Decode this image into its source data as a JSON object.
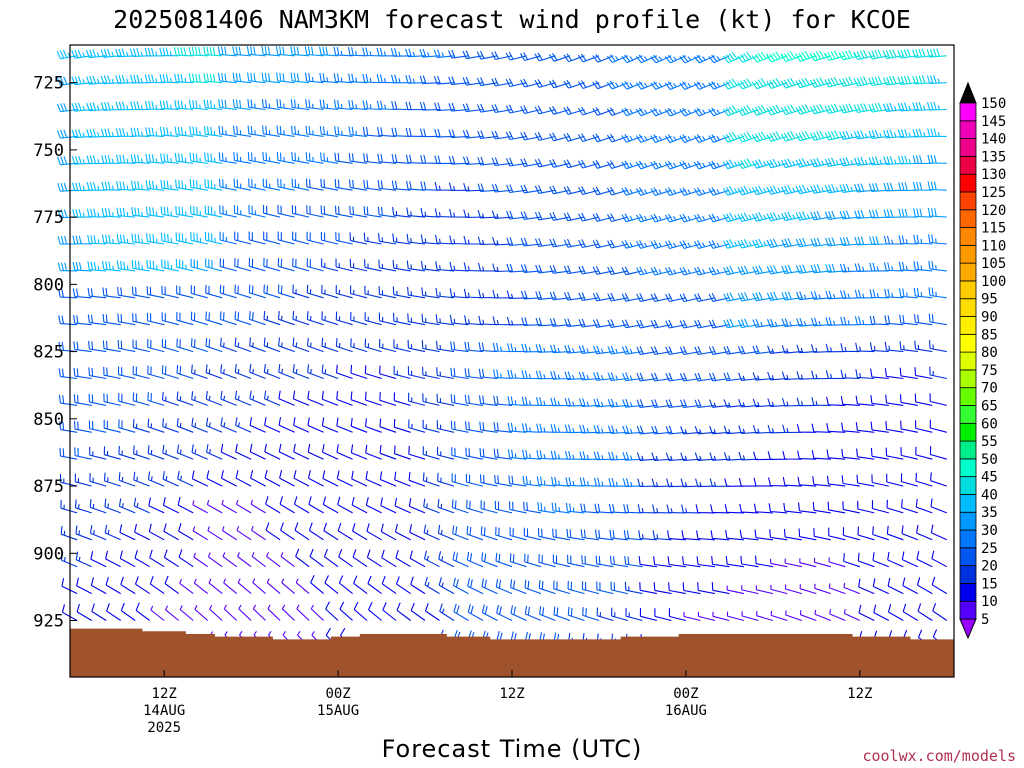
{
  "title": "2025081406 NAM3KM forecast wind profile (kt) for KCOE",
  "credit": "coolwx.com/models",
  "chart_data": {
    "type": "wind-barb time-height",
    "xlabel": "Forecast Time (UTC)",
    "ylabel": "",
    "y_axis": {
      "label_values": [
        725,
        750,
        775,
        800,
        825,
        850,
        875,
        900,
        925
      ],
      "range": [
        711,
        946
      ],
      "inverted": true
    },
    "x_axis": {
      "range_hours_from_init": [
        -0.5,
        60.5
      ],
      "ticks": [
        {
          "hour": 6,
          "lines": [
            "12Z",
            "14AUG",
            "2025"
          ]
        },
        {
          "hour": 18,
          "lines": [
            "00Z",
            "15AUG"
          ]
        },
        {
          "hour": 30,
          "lines": [
            "12Z"
          ]
        },
        {
          "hour": 42,
          "lines": [
            "00Z",
            "16AUG"
          ]
        },
        {
          "hour": 54,
          "lines": [
            "12Z"
          ]
        }
      ]
    },
    "barb_levels_hpa": [
      715,
      725,
      735,
      745,
      755,
      765,
      775,
      785,
      795,
      805,
      815,
      825,
      835,
      845,
      855,
      865,
      875,
      885,
      895,
      905,
      915,
      925,
      935
    ],
    "forecast_hours": [
      0,
      60
    ],
    "surface_pressure_hpa": [
      {
        "h": 0,
        "p": 928
      },
      {
        "h": 4,
        "p": 928
      },
      {
        "h": 5,
        "p": 929
      },
      {
        "h": 8,
        "p": 930
      },
      {
        "h": 10,
        "p": 931
      },
      {
        "h": 14,
        "p": 932
      },
      {
        "h": 18,
        "p": 931
      },
      {
        "h": 20,
        "p": 930
      },
      {
        "h": 22,
        "p": 930
      },
      {
        "h": 26,
        "p": 931
      },
      {
        "h": 29,
        "p": 932
      },
      {
        "h": 36,
        "p": 932
      },
      {
        "h": 38,
        "p": 931
      },
      {
        "h": 42,
        "p": 930
      },
      {
        "h": 52,
        "p": 930
      },
      {
        "h": 54,
        "p": 931
      },
      {
        "h": 56,
        "p": 931
      },
      {
        "h": 58,
        "p": 932
      },
      {
        "h": 60,
        "p": 932
      }
    ],
    "wind_speed_colorbar_kt": [
      5,
      10,
      15,
      20,
      25,
      30,
      35,
      40,
      45,
      50,
      55,
      60,
      65,
      70,
      75,
      80,
      85,
      90,
      95,
      100,
      105,
      110,
      115,
      120,
      125,
      130,
      135,
      140,
      145,
      150
    ],
    "colorbar_colors": [
      "#9900ff",
      "#5500ff",
      "#0000ee",
      "#0033dd",
      "#0055ee",
      "#0077ff",
      "#0099ff",
      "#00bbff",
      "#00dddd",
      "#00ffcc",
      "#00ee88",
      "#00ee00",
      "#33ff33",
      "#66ff00",
      "#aaff00",
      "#ddff00",
      "#ffff00",
      "#ffee00",
      "#ffdd00",
      "#ffcc00",
      "#ffaa00",
      "#ff9900",
      "#ff8800",
      "#ff6600",
      "#ff4400",
      "#ff0000",
      "#ee0044",
      "#ee0088",
      "#ee00bb",
      "#ff00ff",
      "#ff00ff"
    ],
    "terrain_color": "#a0522d"
  }
}
